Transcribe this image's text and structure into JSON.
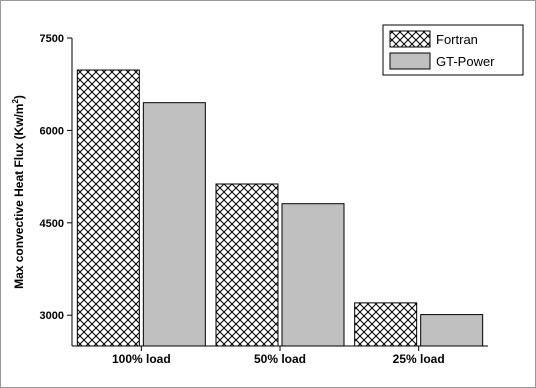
{
  "chart_data": {
    "type": "bar",
    "categories": [
      "100% load",
      "50% load",
      "25% load"
    ],
    "series": [
      {
        "name": "Fortran",
        "values": [
          6980,
          5130,
          3200
        ],
        "pattern": "crosshatch",
        "color": "#ffffff"
      },
      {
        "name": "GT-Power",
        "values": [
          6450,
          4810,
          3010
        ],
        "pattern": "solid",
        "color": "#c0c0c0"
      }
    ],
    "ylabel_main": "Max convective Heat Flux (Kw/m",
    "ylabel_sup": "2",
    "ylabel_end": ")",
    "xlabel": "",
    "ylim": [
      2500,
      7500
    ],
    "yticks": [
      3000,
      4500,
      6000,
      7500
    ],
    "legend_position": "top-right",
    "grid": false
  },
  "frame_color": "#999999"
}
